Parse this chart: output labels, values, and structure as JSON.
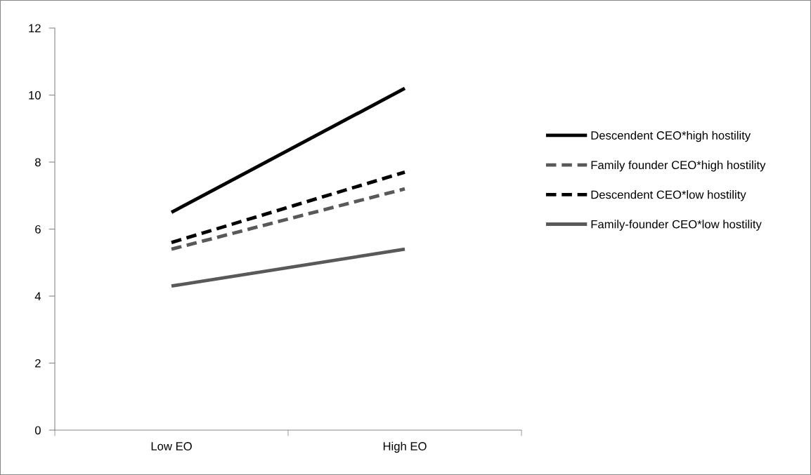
{
  "chart_data": {
    "type": "line",
    "categories": [
      "Low EO",
      "High EO"
    ],
    "series": [
      {
        "name": "Descendent CEO*high hostility",
        "color": "#000000",
        "line_style": "solid",
        "values": [
          6.5,
          10.2
        ]
      },
      {
        "name": "Family founder CEO*high hostility",
        "color": "#595959",
        "line_style": "dashed",
        "values": [
          5.4,
          7.2
        ]
      },
      {
        "name": "Descendent CEO*low hostility",
        "color": "#000000",
        "line_style": "dashed",
        "values": [
          5.6,
          7.7
        ]
      },
      {
        "name": "Family-founder CEO*low hostility",
        "color": "#595959",
        "line_style": "solid",
        "values": [
          4.3,
          5.4
        ]
      }
    ],
    "ylim": [
      0,
      12
    ],
    "yticks": [
      0,
      2,
      4,
      6,
      8,
      10,
      12
    ],
    "grid": false,
    "legend": "right",
    "marker": "none"
  }
}
